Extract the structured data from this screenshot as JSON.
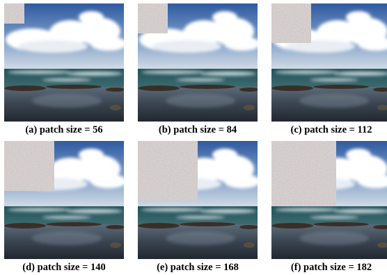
{
  "panels": [
    {
      "caption": "(a) patch size = 56"
    },
    {
      "caption": "(b) patch size = 84"
    },
    {
      "caption": "(c) patch size = 112"
    },
    {
      "caption": "(d) patch size = 140"
    },
    {
      "caption": "(e) patch size = 168"
    },
    {
      "caption": "(f) patch size = 182"
    }
  ]
}
